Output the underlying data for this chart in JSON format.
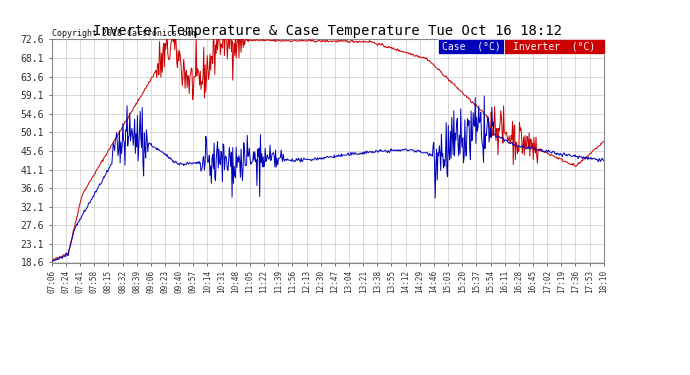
{
  "title": "Inverter Temperature & Case Temperature Tue Oct 16 18:12",
  "copyright": "Copyright 2018 Cartronics.com",
  "yticks": [
    18.6,
    23.1,
    27.6,
    32.1,
    36.6,
    41.1,
    45.6,
    50.1,
    54.6,
    59.1,
    63.6,
    68.1,
    72.6
  ],
  "ylim": [
    18.6,
    72.6
  ],
  "background_color": "#ffffff",
  "grid_color": "#cccccc",
  "inverter_color": "#cc0000",
  "case_color": "#0000bb",
  "legend_case_bg": "#0000bb",
  "legend_inv_bg": "#cc0000",
  "xtick_labels": [
    "07:06",
    "07:24",
    "07:41",
    "07:58",
    "08:15",
    "08:32",
    "08:39",
    "09:06",
    "09:23",
    "09:40",
    "09:57",
    "10:14",
    "10:31",
    "10:48",
    "11:05",
    "11:22",
    "11:39",
    "11:56",
    "12:13",
    "12:30",
    "12:47",
    "13:04",
    "13:21",
    "13:38",
    "13:55",
    "14:12",
    "14:29",
    "14:46",
    "15:03",
    "15:20",
    "15:37",
    "15:54",
    "16:11",
    "16:28",
    "16:45",
    "17:02",
    "17:19",
    "17:36",
    "17:53",
    "18:10"
  ],
  "n_points": 800,
  "figwidth": 6.9,
  "figheight": 3.75,
  "dpi": 100
}
